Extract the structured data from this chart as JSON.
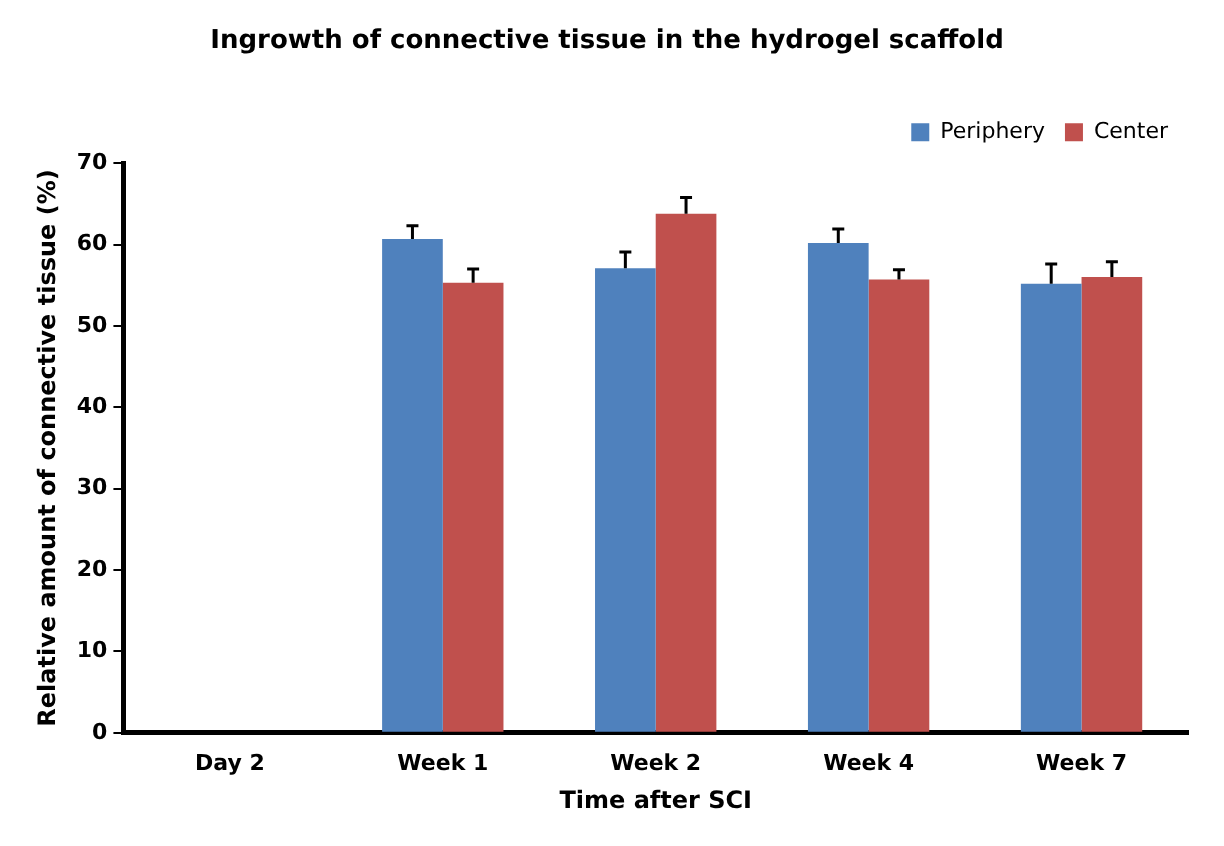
{
  "chart_data": {
    "type": "bar",
    "title": "Ingrowth of connective tissue in the hydrogel scaffold",
    "xlabel": "Time after SCI",
    "ylabel": "Relative amount of connective tissue (%)",
    "categories": [
      "Day 2",
      "Week 1",
      "Week 2",
      "Week 4",
      "Week 7"
    ],
    "series": [
      {
        "name": "Periphery",
        "color": "#4f81bd",
        "values": [
          null,
          60.7,
          57.1,
          60.2,
          55.2
        ],
        "errors": [
          null,
          [
            60.7,
            62.3
          ],
          [
            57.1,
            59.1
          ],
          [
            60.2,
            61.9
          ],
          [
            55.2,
            57.6
          ]
        ]
      },
      {
        "name": "Center",
        "color": "#c0504d",
        "values": [
          null,
          55.3,
          63.8,
          55.7,
          56.0
        ],
        "errors": [
          null,
          [
            55.3,
            57.0
          ],
          [
            63.8,
            65.8
          ],
          [
            55.7,
            56.9
          ],
          [
            56.0,
            57.9
          ]
        ]
      }
    ],
    "ylim": [
      0,
      70
    ],
    "yticks": [
      0,
      10,
      20,
      30,
      40,
      50,
      60,
      70
    ],
    "grid": false,
    "legend": "top right"
  }
}
